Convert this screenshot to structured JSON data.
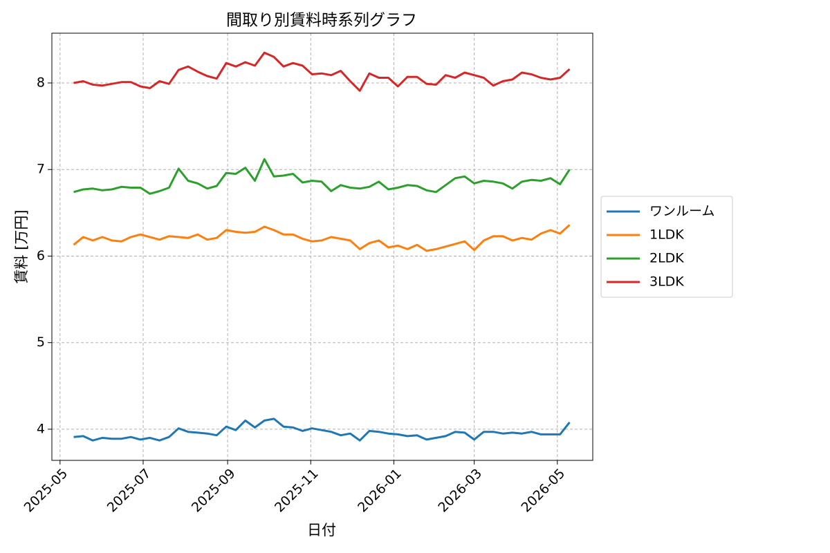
{
  "chart_data": {
    "type": "line",
    "title": "間取り別賃料時系列グラフ",
    "x_label": "日付",
    "y_label": "賃料 [万円]",
    "x": [
      "2025-05-11",
      "2025-05-18",
      "2025-05-25",
      "2025-06-01",
      "2025-06-08",
      "2025-06-15",
      "2025-06-22",
      "2025-06-29",
      "2025-07-06",
      "2025-07-13",
      "2025-07-20",
      "2025-07-27",
      "2025-08-03",
      "2025-08-10",
      "2025-08-17",
      "2025-08-24",
      "2025-08-31",
      "2025-09-07",
      "2025-09-14",
      "2025-09-21",
      "2025-09-28",
      "2025-10-05",
      "2025-10-12",
      "2025-10-19",
      "2025-10-26",
      "2025-11-02",
      "2025-11-09",
      "2025-11-16",
      "2025-11-23",
      "2025-11-30",
      "2025-12-07",
      "2025-12-14",
      "2025-12-21",
      "2025-12-28",
      "2026-01-04",
      "2026-01-11",
      "2026-01-18",
      "2026-01-25",
      "2026-02-01",
      "2026-02-08",
      "2026-02-15",
      "2026-02-22",
      "2026-03-01",
      "2026-03-08",
      "2026-03-15",
      "2026-03-22",
      "2026-03-29",
      "2026-04-05",
      "2026-04-12",
      "2026-04-19",
      "2026-04-26",
      "2026-05-03",
      "2026-05-10"
    ],
    "series": [
      {
        "name": "ワンルーム",
        "color": "#1f77b4",
        "values": [
          3.91,
          3.92,
          3.87,
          3.9,
          3.89,
          3.89,
          3.91,
          3.88,
          3.9,
          3.87,
          3.91,
          4.01,
          3.97,
          3.96,
          3.95,
          3.93,
          4.03,
          3.99,
          4.1,
          4.02,
          4.1,
          4.12,
          4.03,
          4.02,
          3.98,
          4.01,
          3.99,
          3.97,
          3.93,
          3.95,
          3.87,
          3.98,
          3.97,
          3.95,
          3.94,
          3.92,
          3.93,
          3.88,
          3.9,
          3.92,
          3.97,
          3.96,
          3.88,
          3.97,
          3.97,
          3.95,
          3.96,
          3.95,
          3.97,
          3.94,
          3.94,
          3.94,
          4.08
        ]
      },
      {
        "name": "1LDK",
        "color": "#ff7f0e",
        "values": [
          6.13,
          6.22,
          6.18,
          6.22,
          6.18,
          6.17,
          6.22,
          6.25,
          6.22,
          6.19,
          6.23,
          6.22,
          6.21,
          6.25,
          6.19,
          6.21,
          6.3,
          6.28,
          6.27,
          6.28,
          6.34,
          6.3,
          6.25,
          6.25,
          6.2,
          6.17,
          6.18,
          6.22,
          6.2,
          6.18,
          6.08,
          6.15,
          6.18,
          6.1,
          6.12,
          6.08,
          6.13,
          6.06,
          6.08,
          6.11,
          6.14,
          6.17,
          6.07,
          6.18,
          6.23,
          6.23,
          6.18,
          6.21,
          6.19,
          6.26,
          6.3,
          6.26,
          6.36
        ]
      },
      {
        "name": "2LDK",
        "color": "#2ca02c",
        "values": [
          6.74,
          6.77,
          6.78,
          6.76,
          6.77,
          6.8,
          6.79,
          6.79,
          6.72,
          6.75,
          6.79,
          7.01,
          6.87,
          6.84,
          6.78,
          6.81,
          6.96,
          6.95,
          7.02,
          6.87,
          7.12,
          6.92,
          6.93,
          6.95,
          6.85,
          6.87,
          6.86,
          6.75,
          6.82,
          6.79,
          6.78,
          6.8,
          6.86,
          6.77,
          6.79,
          6.82,
          6.81,
          6.76,
          6.74,
          6.82,
          6.9,
          6.92,
          6.84,
          6.87,
          6.86,
          6.84,
          6.78,
          6.86,
          6.88,
          6.87,
          6.9,
          6.83,
          7.0
        ]
      },
      {
        "name": "3LDK",
        "color": "#d62728",
        "values": [
          8.0,
          8.02,
          7.98,
          7.97,
          7.99,
          8.01,
          8.01,
          7.96,
          7.94,
          8.02,
          7.99,
          8.15,
          8.19,
          8.13,
          8.08,
          8.05,
          8.23,
          8.19,
          8.24,
          8.2,
          8.35,
          8.3,
          8.19,
          8.23,
          8.2,
          8.1,
          8.11,
          8.09,
          8.14,
          8.02,
          7.91,
          8.11,
          8.06,
          8.06,
          7.96,
          8.07,
          8.07,
          7.99,
          7.98,
          8.09,
          8.06,
          8.12,
          8.09,
          8.06,
          7.97,
          8.02,
          8.04,
          8.12,
          8.1,
          8.06,
          8.04,
          8.06,
          8.16
        ]
      }
    ],
    "xlim": [
      "2025-04-25",
      "2026-05-27"
    ],
    "xticks": [
      "2025-05",
      "2025-07",
      "2025-09",
      "2025-11",
      "2026-01",
      "2026-03",
      "2026-05"
    ],
    "ylim": [
      3.64,
      8.575
    ],
    "yticks": [
      4,
      5,
      6,
      7,
      8
    ],
    "grid": true,
    "legend": "right"
  }
}
